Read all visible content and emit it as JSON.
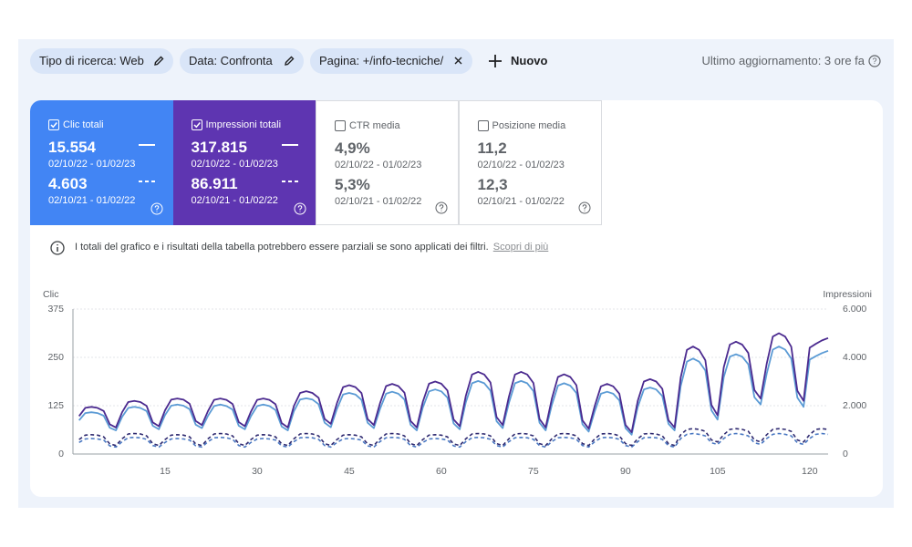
{
  "filters": [
    "Tipo di ricerca: Web",
    "Data: Confronta",
    "Pagina: +/info-tecniche/"
  ],
  "new_button": "Nuovo",
  "last_update": "Ultimo aggiornamento: 3 ore fa",
  "metrics": [
    {
      "label": "Clic totali",
      "checked": true,
      "color": "#4285f4",
      "current": "15.554",
      "current_range": "02/10/22 - 01/02/23",
      "previous": "4.603",
      "previous_range": "02/10/21 - 01/02/22"
    },
    {
      "label": "Impressioni totali",
      "checked": true,
      "color": "#5e35b1",
      "current": "317.815",
      "current_range": "02/10/22 - 01/02/23",
      "previous": "86.911",
      "previous_range": "02/10/21 - 01/02/22"
    },
    {
      "label": "CTR media",
      "checked": false,
      "current": "4,9%",
      "current_range": "02/10/22 - 01/02/23",
      "previous": "5,3%",
      "previous_range": "02/10/21 - 01/02/22"
    },
    {
      "label": "Posizione media",
      "checked": false,
      "current": "11,2",
      "current_range": "02/10/22 - 01/02/23",
      "previous": "12,3",
      "previous_range": "02/10/21 - 01/02/22"
    }
  ],
  "notice": "I totali del grafico e i risultati della tabella potrebbero essere parziali se sono applicati dei filtri.",
  "notice_link": "Scopri di più",
  "chart_data": {
    "type": "line",
    "ylabel": "Clic",
    "y2label": "Impressioni",
    "xlim": [
      0,
      123
    ],
    "xticks": [
      15,
      30,
      45,
      60,
      75,
      90,
      105,
      120
    ],
    "ylim": [
      0,
      375
    ],
    "yticks": [
      0,
      125,
      250,
      375
    ],
    "y2lim": [
      0,
      6000
    ],
    "y2ticks": [
      0,
      {
        "value": 2000,
        "label": "2.000"
      },
      {
        "value": 4000,
        "label": "4.000"
      },
      {
        "value": 6000,
        "label": "6.000"
      }
    ],
    "grid": true,
    "x": [
      1,
      2,
      3,
      4,
      5,
      6,
      7,
      8,
      9,
      10,
      11,
      12,
      13,
      14,
      15,
      16,
      17,
      18,
      19,
      20,
      21,
      22,
      23,
      24,
      25,
      26,
      27,
      28,
      29,
      30,
      31,
      32,
      33,
      34,
      35,
      36,
      37,
      38,
      39,
      40,
      41,
      42,
      43,
      44,
      45,
      46,
      47,
      48,
      49,
      50,
      51,
      52,
      53,
      54,
      55,
      56,
      57,
      58,
      59,
      60,
      61,
      62,
      63,
      64,
      65,
      66,
      67,
      68,
      69,
      70,
      71,
      72,
      73,
      74,
      75,
      76,
      77,
      78,
      79,
      80,
      81,
      82,
      83,
      84,
      85,
      86,
      87,
      88,
      89,
      90,
      91,
      92,
      93,
      94,
      95,
      96,
      97,
      98,
      99,
      100,
      101,
      102,
      103,
      104,
      105,
      106,
      107,
      108,
      109,
      110,
      111,
      112,
      113,
      114,
      115,
      116,
      117,
      118,
      119,
      120,
      121,
      122,
      123
    ],
    "series": [
      {
        "color": "#4a78c2",
        "dashed": true,
        "values": [
          30,
          39,
          40,
          39,
          36,
          21,
          18,
          32,
          42,
          43,
          42,
          38,
          22,
          18,
          30,
          39,
          40,
          39,
          36,
          21,
          18,
          32,
          42,
          43,
          42,
          38,
          22,
          18,
          30,
          39,
          40,
          39,
          36,
          21,
          18,
          32,
          42,
          43,
          42,
          38,
          22,
          18,
          30,
          39,
          40,
          39,
          36,
          21,
          18,
          32,
          42,
          43,
          42,
          38,
          22,
          18,
          30,
          39,
          40,
          39,
          36,
          21,
          18,
          32,
          42,
          43,
          42,
          38,
          22,
          18,
          32,
          42,
          43,
          42,
          38,
          22,
          18,
          32,
          42,
          43,
          42,
          38,
          22,
          18,
          32,
          42,
          43,
          42,
          38,
          22,
          18,
          32,
          42,
          43,
          42,
          38,
          22,
          18,
          40,
          51,
          53,
          51,
          47,
          29,
          25,
          40,
          51,
          53,
          51,
          47,
          29,
          25,
          40,
          51,
          53,
          51,
          47,
          29,
          25,
          40,
          51,
          53,
          51
        ]
      },
      {
        "color": "#2f2a70",
        "dashed": true,
        "axis": "y2",
        "values": [
          600,
          780,
          800,
          780,
          710,
          420,
          350,
          630,
          830,
          850,
          830,
          750,
          430,
          350,
          600,
          780,
          800,
          780,
          710,
          420,
          350,
          630,
          830,
          850,
          830,
          750,
          430,
          350,
          600,
          780,
          800,
          780,
          710,
          420,
          350,
          630,
          830,
          850,
          830,
          750,
          430,
          350,
          600,
          780,
          800,
          780,
          710,
          420,
          350,
          630,
          830,
          850,
          830,
          750,
          430,
          350,
          600,
          780,
          800,
          780,
          710,
          420,
          350,
          630,
          830,
          850,
          830,
          750,
          430,
          350,
          630,
          830,
          850,
          830,
          750,
          430,
          350,
          630,
          830,
          850,
          830,
          750,
          430,
          350,
          630,
          830,
          850,
          830,
          750,
          430,
          350,
          630,
          830,
          850,
          830,
          750,
          430,
          350,
          800,
          1020,
          1050,
          1020,
          940,
          580,
          500,
          800,
          1020,
          1050,
          1020,
          940,
          580,
          500,
          800,
          1020,
          1050,
          1020,
          940,
          580,
          500,
          800,
          1020,
          1050,
          1020
        ]
      },
      {
        "color": "#5b9bd5",
        "values": [
          87,
          106,
          108,
          106,
          99,
          68,
          61,
          96,
          119,
          122,
          119,
          111,
          73,
          64,
          101,
          125,
          128,
          125,
          116,
          76,
          67,
          99,
          124,
          128,
          124,
          115,
          73,
          64,
          98,
          124,
          128,
          124,
          114,
          71,
          61,
          111,
          141,
          144,
          141,
          129,
          81,
          69,
          117,
          154,
          158,
          154,
          140,
          81,
          67,
          116,
          156,
          161,
          156,
          141,
          76,
          61,
          121,
          162,
          167,
          162,
          146,
          79,
          64,
          134,
          183,
          189,
          183,
          164,
          85,
          67,
          132,
          183,
          189,
          183,
          163,
          81,
          61,
          127,
          177,
          183,
          177,
          158,
          77,
          58,
          111,
          156,
          161,
          156,
          139,
          67,
          50,
          122,
          167,
          172,
          167,
          150,
          78,
          61,
          176,
          239,
          247,
          239,
          216,
          113,
          89,
          199,
          252,
          258,
          252,
          232,
          147,
          128,
          208,
          270,
          278,
          270,
          247,
          146,
          122,
          244,
          253,
          261,
          267
        ]
      },
      {
        "color": "#4b2a8f",
        "axis": "y2",
        "values": [
          1570,
          1910,
          1950,
          1910,
          1780,
          1230,
          1100,
          1730,
          2150,
          2200,
          2150,
          1990,
          1310,
          1150,
          1810,
          2250,
          2300,
          2250,
          2080,
          1370,
          1200,
          1780,
          2240,
          2300,
          2240,
          2070,
          1320,
          1150,
          1760,
          2240,
          2300,
          2240,
          2060,
          1280,
          1100,
          1990,
          2530,
          2600,
          2530,
          2330,
          1450,
          1250,
          2110,
          2770,
          2850,
          2770,
          2520,
          1450,
          1200,
          2090,
          2810,
          2900,
          2810,
          2540,
          1370,
          1100,
          2170,
          2910,
          3000,
          2910,
          2630,
          1430,
          1150,
          2410,
          3290,
          3400,
          3290,
          2960,
          1530,
          1200,
          2370,
          3290,
          3400,
          3290,
          2940,
          1450,
          1100,
          2290,
          3190,
          3300,
          3190,
          2850,
          1390,
          1050,
          2000,
          2800,
          2900,
          2800,
          2500,
          1200,
          900,
          2200,
          3000,
          3100,
          3000,
          2700,
          1400,
          1100,
          3170,
          4310,
          4450,
          4310,
          3880,
          2030,
          1600,
          3590,
          4530,
          4650,
          4530,
          4180,
          2650,
          2300,
          3740,
          4860,
          5000,
          4860,
          4440,
          2620,
          2200,
          4400,
          4560,
          4700,
          4800
        ]
      }
    ]
  }
}
